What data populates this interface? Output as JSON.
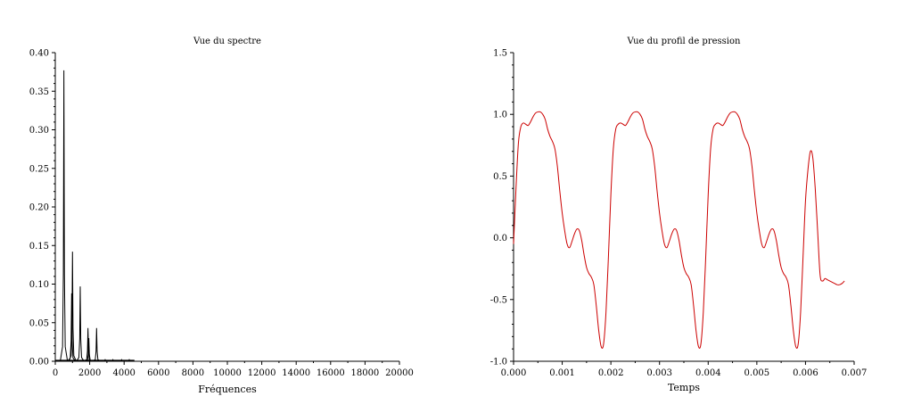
{
  "chart_data": [
    {
      "type": "line",
      "title": "Vue du spectre",
      "xlabel": "Fréquences",
      "ylabel": "",
      "xlim": [
        0,
        20000
      ],
      "ylim": [
        0,
        0.4
      ],
      "xticks": [
        "0",
        "2000",
        "4000",
        "6000",
        "8000",
        "10000",
        "12000",
        "14000",
        "16000",
        "18000",
        "20000"
      ],
      "yticks": [
        "0.00",
        "0.05",
        "0.10",
        "0.15",
        "0.20",
        "0.25",
        "0.30",
        "0.35",
        "0.40"
      ],
      "color": "#000000",
      "grid": false,
      "peaks": [
        {
          "x": 500,
          "y": 0.377
        },
        {
          "x": 950,
          "y": 0.088
        },
        {
          "x": 1000,
          "y": 0.142
        },
        {
          "x": 1450,
          "y": 0.097
        },
        {
          "x": 1900,
          "y": 0.043
        },
        {
          "x": 1950,
          "y": 0.03
        },
        {
          "x": 2400,
          "y": 0.043
        },
        {
          "x": 2900,
          "y": 0.002
        },
        {
          "x": 3350,
          "y": 0.002
        },
        {
          "x": 3850,
          "y": 0.002
        },
        {
          "x": 4300,
          "y": 0.002
        }
      ],
      "baseline_end": 4600
    },
    {
      "type": "line",
      "title": "Vue du profil de pression",
      "xlabel": "Temps",
      "ylabel": "",
      "xlim": [
        0,
        0.007
      ],
      "ylim": [
        -1.0,
        1.5
      ],
      "xticks": [
        "0.000",
        "0.001",
        "0.002",
        "0.003",
        "0.004",
        "0.005",
        "0.006",
        "0.007"
      ],
      "yticks": [
        "-1.0",
        "-0.5",
        "0.0",
        "0.5",
        "1.0",
        "1.5"
      ],
      "color": "#cc0000",
      "grid": false,
      "series": [
        {
          "x": [
            0.0,
            5e-05,
            0.0001,
            0.00015,
            0.0002,
            0.00025,
            0.0003,
            0.00035,
            0.0004,
            0.00045,
            0.0005,
            0.00055,
            0.0006,
            0.00065,
            0.0007,
            0.00075,
            0.0008,
            0.00085,
            0.0009,
            0.00095,
            0.001,
            0.00105,
            0.0011,
            0.00115,
            0.0012,
            0.00125,
            0.0013,
            0.00135,
            0.0014,
            0.00145,
            0.0015,
            0.00155,
            0.0016,
            0.00165,
            0.0017,
            0.00175,
            0.0018,
            0.00185,
            0.0019,
            0.00195,
            0.002,
            0.00205,
            0.0021,
            0.00215,
            0.0022,
            0.00225,
            0.0023,
            0.00235,
            0.0024,
            0.00245,
            0.0025,
            0.00255,
            0.0026,
            0.00265,
            0.0027,
            0.00275,
            0.0028,
            0.00285,
            0.0029,
            0.00295,
            0.003,
            0.00305,
            0.0031,
            0.00315,
            0.0032,
            0.00325,
            0.0033,
            0.00335,
            0.0034,
            0.00345,
            0.0035,
            0.00355,
            0.0036,
            0.00365,
            0.0037,
            0.00375,
            0.0038,
            0.00385,
            0.0039,
            0.00395,
            0.004,
            0.00405,
            0.0041,
            0.00415,
            0.0042,
            0.00425,
            0.0043,
            0.00435,
            0.0044,
            0.00445,
            0.0045,
            0.00455,
            0.0046,
            0.00465,
            0.0047,
            0.00475,
            0.0048,
            0.00485,
            0.0049,
            0.00495,
            0.005,
            0.00505,
            0.0051,
            0.00515,
            0.0052,
            0.00525,
            0.0053,
            0.00535,
            0.0054,
            0.00545,
            0.0055,
            0.00555,
            0.0056,
            0.00565,
            0.0057,
            0.00575,
            0.0058,
            0.00585,
            0.0059,
            0.00595,
            0.006,
            0.00605,
            0.0061,
            0.00615,
            0.0062,
            0.00625,
            0.0063,
            0.00635,
            0.0064,
            0.00645,
            0.0065,
            0.00655,
            0.0066,
            0.00665,
            0.0067,
            0.00675,
            0.0068
          ],
          "y": [
            -0.05,
            0.4,
            0.77,
            0.9,
            0.93,
            0.92,
            0.91,
            0.94,
            0.98,
            1.01,
            1.02,
            1.02,
            1.0,
            0.96,
            0.88,
            0.82,
            0.78,
            0.72,
            0.58,
            0.38,
            0.2,
            0.06,
            -0.05,
            -0.08,
            -0.03,
            0.03,
            0.07,
            0.06,
            -0.02,
            -0.14,
            -0.24,
            -0.29,
            -0.32,
            -0.38,
            -0.55,
            -0.75,
            -0.88,
            -0.86,
            -0.6,
            -0.15,
            0.35,
            0.72,
            0.88,
            0.92,
            0.93,
            0.92,
            0.91,
            0.94,
            0.98,
            1.01,
            1.02,
            1.02,
            1.0,
            0.96,
            0.88,
            0.82,
            0.78,
            0.72,
            0.58,
            0.38,
            0.2,
            0.06,
            -0.05,
            -0.08,
            -0.03,
            0.03,
            0.07,
            0.06,
            -0.02,
            -0.14,
            -0.24,
            -0.29,
            -0.32,
            -0.38,
            -0.55,
            -0.75,
            -0.88,
            -0.86,
            -0.6,
            -0.15,
            0.35,
            0.72,
            0.88,
            0.92,
            0.93,
            0.92,
            0.91,
            0.94,
            0.98,
            1.01,
            1.02,
            1.02,
            1.0,
            0.96,
            0.88,
            0.82,
            0.78,
            0.72,
            0.58,
            0.38,
            0.2,
            0.06,
            -0.05,
            -0.08,
            -0.03,
            0.03,
            0.07,
            0.06,
            -0.02,
            -0.14,
            -0.24,
            -0.29,
            -0.32,
            -0.38,
            -0.55,
            -0.75,
            -0.88,
            -0.86,
            -0.6,
            -0.15,
            0.3,
            0.55,
            0.7,
            0.65,
            0.4,
            0.05,
            -0.3,
            -0.35,
            -0.33,
            -0.34,
            -0.35,
            -0.36,
            -0.37,
            -0.38,
            -0.38,
            -0.37,
            -0.35
          ]
        }
      ]
    }
  ]
}
